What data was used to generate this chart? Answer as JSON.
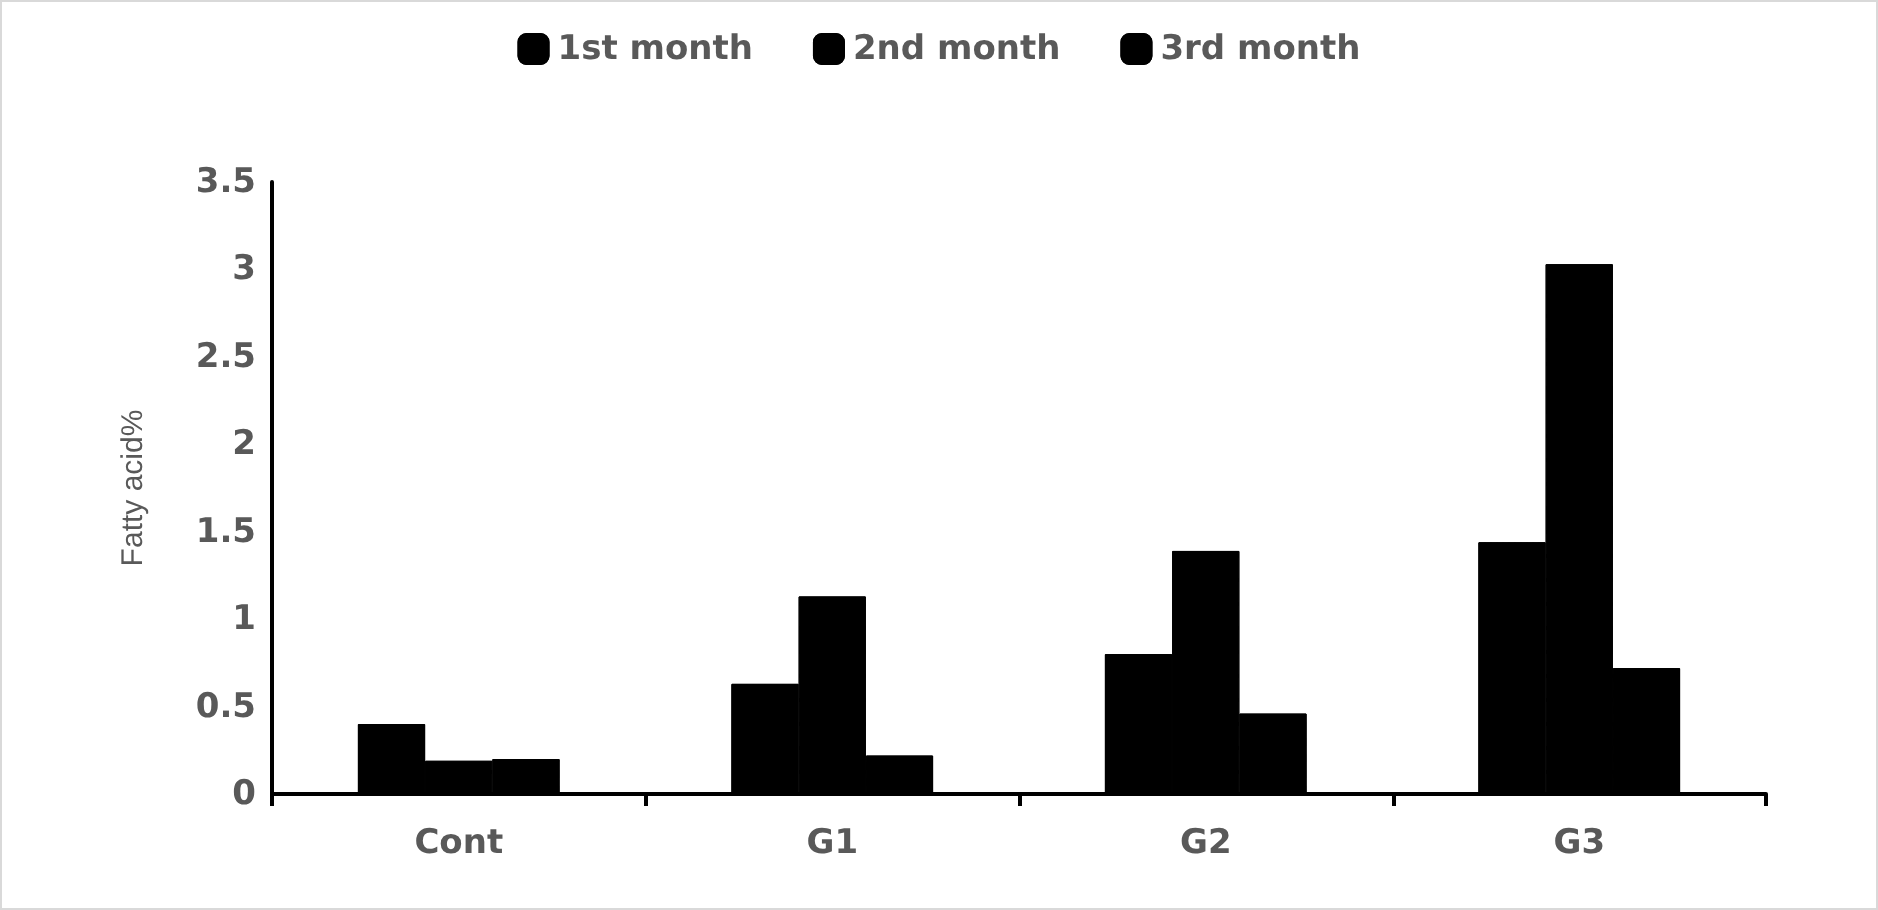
{
  "chart_data": {
    "type": "bar",
    "ylabel": "Fatty acid%",
    "categories": [
      "Cont",
      "G1",
      "G2",
      "G3"
    ],
    "series": [
      {
        "name": "1st month",
        "color": "#000000",
        "values": [
          0.4,
          0.63,
          0.8,
          1.44
        ]
      },
      {
        "name": "2nd month",
        "color": "#000000",
        "values": [
          0.19,
          1.13,
          1.39,
          3.03
        ]
      },
      {
        "name": "3rd month",
        "color": "#000000",
        "values": [
          0.2,
          0.22,
          0.46,
          0.72
        ]
      }
    ],
    "ylim": [
      0,
      3.5
    ],
    "yticks": [
      0,
      0.5,
      1,
      1.5,
      2,
      2.5,
      3,
      3.5
    ],
    "grid": false,
    "legend": "top"
  }
}
